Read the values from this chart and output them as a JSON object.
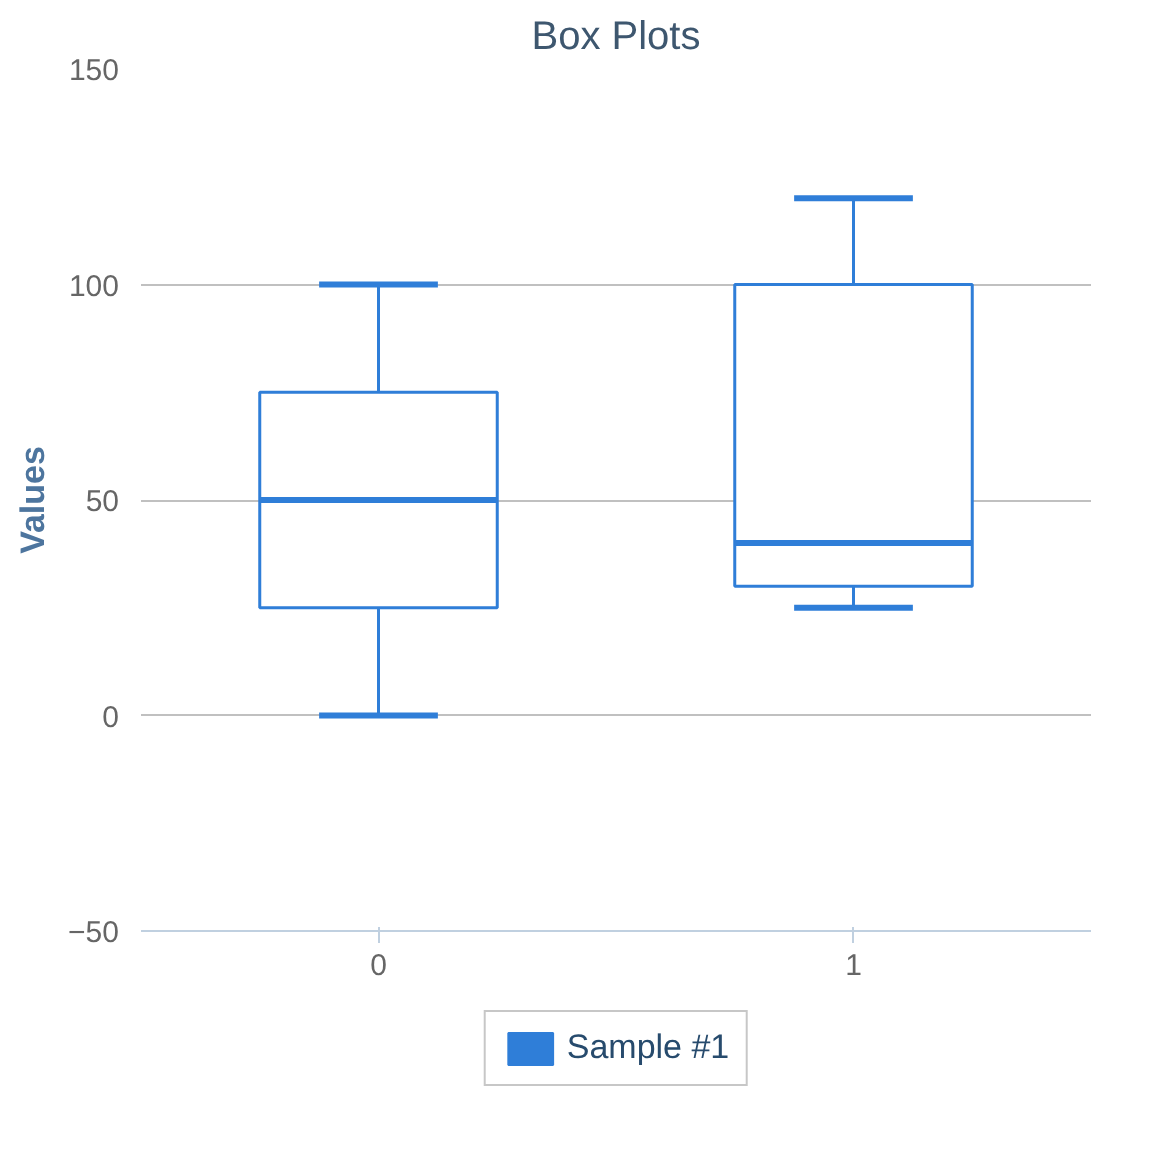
{
  "chart_data": {
    "type": "box",
    "title": "Box Plots",
    "ylabel": "Values",
    "categories": [
      "0",
      "1"
    ],
    "series": [
      {
        "name": "Sample #1",
        "color": "#2f7ed8",
        "boxes": [
          {
            "low": 0,
            "q1": 25,
            "median": 50,
            "q3": 75,
            "high": 100
          },
          {
            "low": 25,
            "q1": 30,
            "median": 40,
            "q3": 100,
            "high": 120
          }
        ]
      }
    ],
    "ylim": [
      -50,
      150
    ],
    "yticks": [
      -50,
      0,
      50,
      100,
      150
    ],
    "grid": "y",
    "legend": "bottom"
  }
}
